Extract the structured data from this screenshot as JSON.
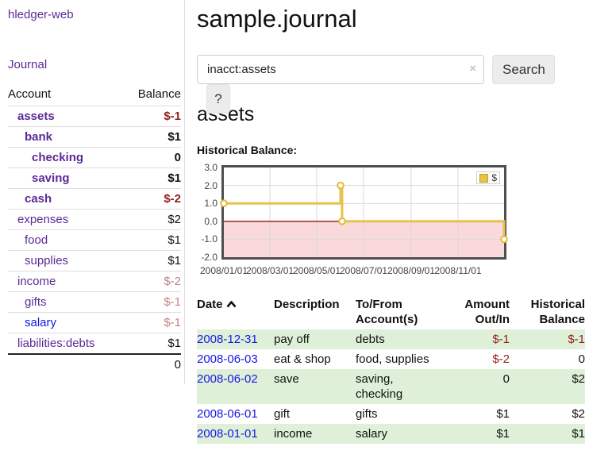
{
  "app": {
    "title": "hledger-web"
  },
  "sidebar": {
    "journal_link": "Journal",
    "accounts_table": {
      "account_header": "Account",
      "balance_header": "Balance",
      "rows": [
        {
          "account": "assets",
          "balance": "$-1",
          "indent": 1,
          "bold": true,
          "neg": "strong"
        },
        {
          "account": "bank",
          "balance": "$1",
          "indent": 2,
          "bold": true,
          "neg": "none"
        },
        {
          "account": "checking",
          "balance": "0",
          "indent": 3,
          "bold": true,
          "neg": "none"
        },
        {
          "account": "saving",
          "balance": "$1",
          "indent": 3,
          "bold": true,
          "neg": "none"
        },
        {
          "account": "cash",
          "balance": "$-2",
          "indent": 2,
          "bold": true,
          "neg": "strong"
        },
        {
          "account": "expenses",
          "balance": "$2",
          "indent": 1,
          "bold": false,
          "neg": "none"
        },
        {
          "account": "food",
          "balance": "$1",
          "indent": 2,
          "bold": false,
          "neg": "none"
        },
        {
          "account": "supplies",
          "balance": "$1",
          "indent": 2,
          "bold": false,
          "neg": "none"
        },
        {
          "account": "income",
          "balance": "$-2",
          "indent": 1,
          "bold": false,
          "neg": "soft"
        },
        {
          "account": "gifts",
          "balance": "$-1",
          "indent": 2,
          "bold": false,
          "neg": "soft"
        },
        {
          "account": "salary",
          "balance": "$-1",
          "indent": 2,
          "bold": false,
          "neg": "soft",
          "link_color": "blue"
        },
        {
          "account": "liabilities:debts",
          "balance": "$1",
          "indent": 1,
          "bold": false,
          "neg": "none"
        }
      ],
      "total": "0"
    }
  },
  "main": {
    "title": "sample.journal",
    "search": {
      "value": "inacct:assets",
      "clear_icon": "×",
      "search_button": "Search",
      "help_button": "?"
    },
    "account_heading": "assets",
    "chart_label": "Historical Balance:"
  },
  "chart_data": {
    "type": "line",
    "title": "Historical Balance",
    "step": true,
    "x_range": [
      "2008-01-01",
      "2008-12-31"
    ],
    "ylim": [
      -2,
      3
    ],
    "yticks": [
      "3.0",
      "2.0",
      "1.0",
      "0.0",
      "-1.0",
      "-2.0"
    ],
    "xticks": [
      "2008/01/01",
      "2008/03/01",
      "2008/05/01",
      "2008/07/01",
      "2008/09/01",
      "2008/11/01"
    ],
    "legend": "$",
    "legend_position": "top-right",
    "grid": true,
    "series": [
      {
        "name": "$",
        "points": [
          {
            "date": "2008-01-01",
            "value": 1
          },
          {
            "date": "2008-06-01",
            "value": 2
          },
          {
            "date": "2008-06-03",
            "value": 0
          },
          {
            "date": "2008-12-31",
            "value": -1
          }
        ]
      }
    ],
    "colors": {
      "line": "#e8c24a",
      "marker_stroke": "#e3ba35",
      "marker_fill": "#ffffff",
      "negative_region": "#f9d9d9",
      "zero_line": "#8b1414",
      "gridline": "#d9d9d9",
      "plot_border": "#4f4f4f"
    }
  },
  "transactions": {
    "sort": {
      "column": "Date",
      "direction": "ascending"
    },
    "headers": {
      "date": "Date",
      "description": "Description",
      "accounts": "To/From Account(s)",
      "amount": "Amount Out/In",
      "balance": "Historical Balance"
    },
    "rows": [
      {
        "date": "2008-12-31",
        "description": "pay off",
        "accounts": "debts",
        "amount": "$-1",
        "balance": "$-1",
        "amount_neg": true,
        "balance_neg": true
      },
      {
        "date": "2008-06-03",
        "description": "eat & shop",
        "accounts": "food, supplies",
        "amount": "$-2",
        "balance": "0",
        "amount_neg": true,
        "balance_neg": false
      },
      {
        "date": "2008-06-02",
        "description": "save",
        "accounts": "saving, checking",
        "amount": "0",
        "balance": "$2",
        "amount_neg": false,
        "balance_neg": false
      },
      {
        "date": "2008-06-01",
        "description": "gift",
        "accounts": "gifts",
        "amount": "$1",
        "balance": "$2",
        "amount_neg": false,
        "balance_neg": false
      },
      {
        "date": "2008-01-01",
        "description": "income",
        "accounts": "salary",
        "amount": "$1",
        "balance": "$1",
        "amount_neg": false,
        "balance_neg": false
      }
    ]
  }
}
